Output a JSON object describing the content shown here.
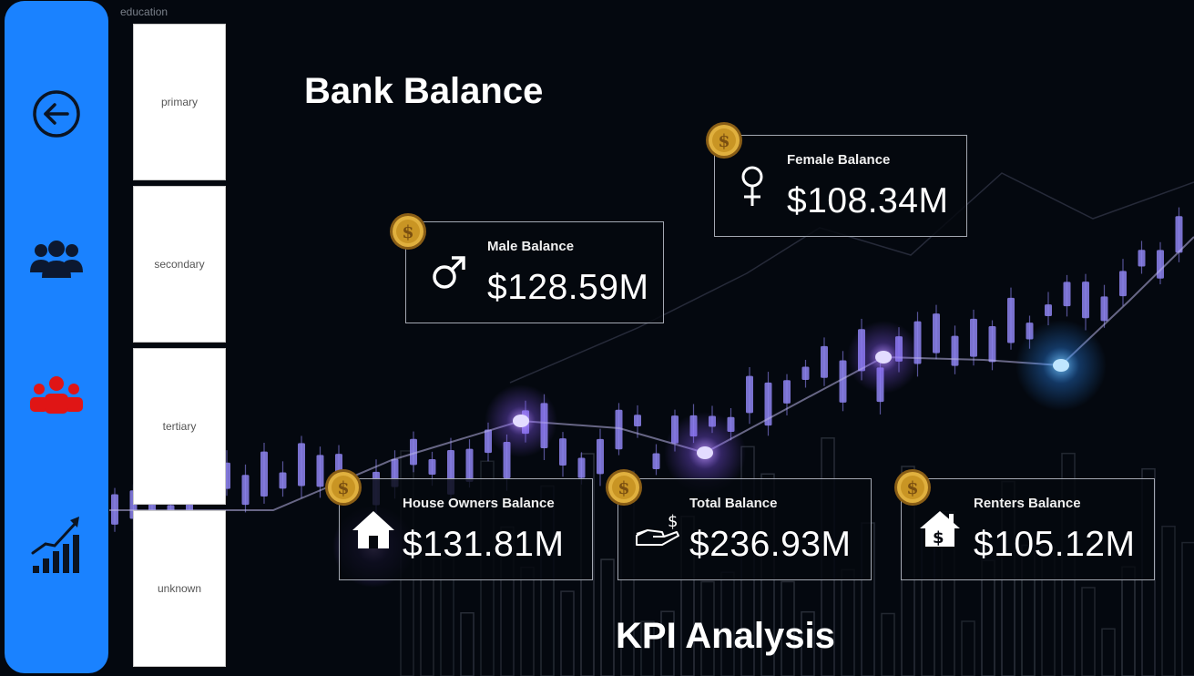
{
  "nav": {
    "items": [
      {
        "icon": "back-arrow-icon"
      },
      {
        "icon": "users-group-icon"
      },
      {
        "icon": "users-group-red-icon"
      },
      {
        "icon": "growth-chart-icon"
      }
    ],
    "colors": {
      "background": "#1a82ff",
      "active": "#e01515"
    }
  },
  "slicer": {
    "title": "education",
    "items": [
      {
        "label": "primary"
      },
      {
        "label": "secondary"
      },
      {
        "label": "tertiary"
      },
      {
        "label": "unknown"
      }
    ]
  },
  "header": {
    "title": "Bank Balance"
  },
  "footer": {
    "title": "KPI Analysis"
  },
  "cards": {
    "female": {
      "label": "Female Balance",
      "value": "$108.34M",
      "icon": "female-symbol-icon"
    },
    "male": {
      "label": "Male Balance",
      "value": "$128.59M",
      "icon": "male-symbol-icon"
    },
    "house_owners": {
      "label": "House Owners Balance",
      "value": "$131.81M",
      "icon": "house-icon"
    },
    "total": {
      "label": "Total Balance",
      "value": "$236.93M",
      "icon": "hand-money-icon"
    },
    "renters": {
      "label": "Renters Balance",
      "value": "$105.12M",
      "icon": "house-dollar-icon"
    }
  },
  "theme": {
    "background": "#050a14",
    "candle": "#8e84f0",
    "glow_purple": "#b58cff",
    "glow_blue": "#3aa0ff",
    "coin": "#d6a431"
  }
}
